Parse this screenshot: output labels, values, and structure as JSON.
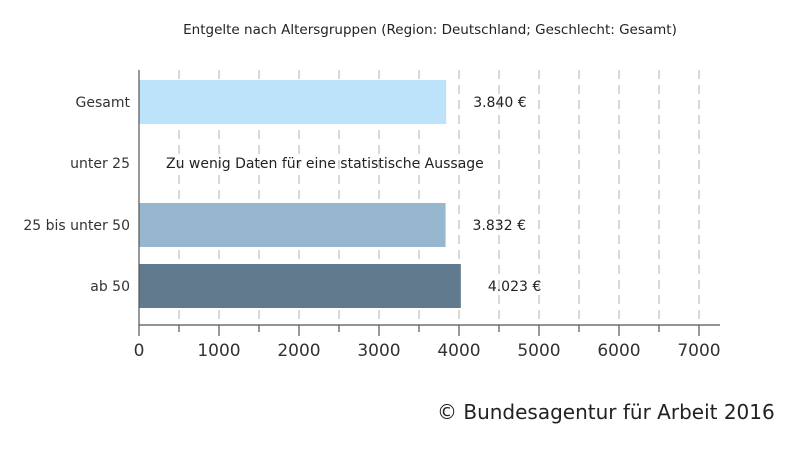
{
  "chart_data": {
    "type": "bar",
    "orientation": "horizontal",
    "title": "Entgelte nach Altersgruppen (Region: Deutschland; Geschlecht: Gesamt)",
    "xlabel": "",
    "ylabel": "",
    "xlim": [
      0,
      7000
    ],
    "x_ticks": [
      "0",
      "1000",
      "2000",
      "3000",
      "4000",
      "5000",
      "6000",
      "7000"
    ],
    "grid": "vertical dashed",
    "categories": [
      "Gesamt",
      "unter 25",
      "25 bis unter 50",
      "ab 50"
    ],
    "values": [
      3840,
      null,
      3832,
      4023
    ],
    "value_labels": [
      "3.840 €",
      "Zu wenig Daten für eine statistische Aussage",
      "3.832 €",
      "4.023 €"
    ],
    "colors": [
      "#bde3fb",
      "#ffffff",
      "#97b7cf",
      "#627a8e"
    ]
  },
  "credit": "© Bundesagentur für Arbeit 2016"
}
